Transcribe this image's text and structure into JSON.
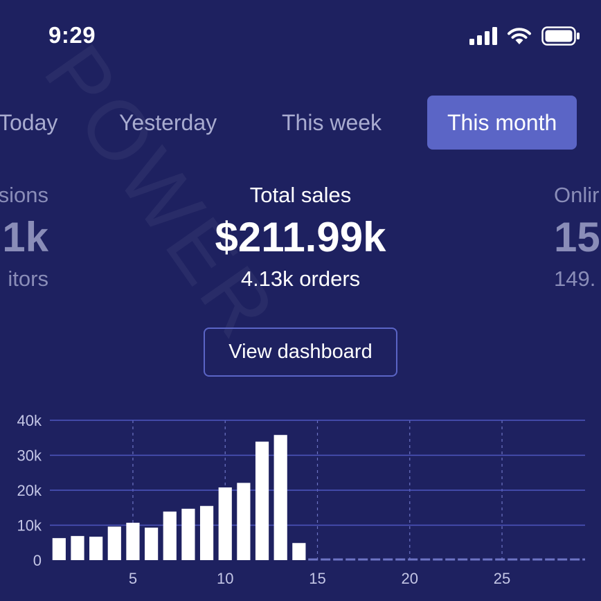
{
  "status_bar": {
    "time": "9:29"
  },
  "watermark": "POWER",
  "tabs": [
    {
      "label": "Today",
      "active": false
    },
    {
      "label": "Yesterday",
      "active": false
    },
    {
      "label": "This week",
      "active": false
    },
    {
      "label": "This month",
      "active": true
    }
  ],
  "metrics": {
    "left": {
      "label": "sions",
      "value": "1k",
      "sub": "itors"
    },
    "center": {
      "label": "Total sales",
      "value": "$211.99k",
      "sub": "4.13k orders"
    },
    "right": {
      "label": "Onlir",
      "value": "15",
      "sub": "149."
    }
  },
  "dashboard_button": "View dashboard",
  "colors": {
    "background": "#1e2160",
    "accent": "#5b65c6",
    "bars": "#ffffff",
    "gridline": "#4e57c0"
  },
  "chart_data": {
    "type": "bar",
    "x": [
      1,
      2,
      3,
      4,
      5,
      6,
      7,
      8,
      9,
      10,
      11,
      12,
      13,
      14,
      15,
      16,
      17,
      18,
      19,
      20,
      21,
      22,
      23,
      24,
      25,
      26,
      27,
      28,
      29
    ],
    "values": [
      6300,
      6900,
      6700,
      9600,
      10700,
      9300,
      13900,
      14700,
      15500,
      20800,
      22100,
      33900,
      35800,
      4900,
      0,
      0,
      0,
      0,
      0,
      0,
      0,
      0,
      0,
      0,
      0,
      0,
      0,
      0,
      0
    ],
    "y_ticks": [
      "0",
      "10k",
      "20k",
      "30k",
      "40k"
    ],
    "y_tick_values": [
      0,
      10000,
      20000,
      30000,
      40000
    ],
    "x_ticks": [
      "5",
      "10",
      "15",
      "20",
      "25"
    ],
    "x_tick_values": [
      5,
      10,
      15,
      20,
      25
    ],
    "ylim": [
      0,
      40000
    ],
    "xlim": [
      0.5,
      29.5
    ],
    "title": "",
    "xlabel": "",
    "ylabel": ""
  }
}
